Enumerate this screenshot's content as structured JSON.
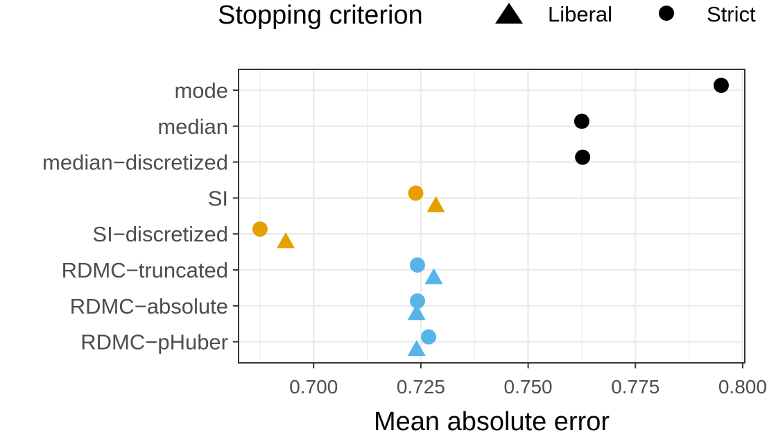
{
  "chart_data": {
    "type": "scatter",
    "title": "",
    "xlabel": "Mean absolute error",
    "ylabel": "",
    "xlim": [
      0.6825,
      0.8005
    ],
    "xticks": [
      0.7,
      0.725,
      0.75,
      0.775,
      0.8
    ],
    "xtick_labels": [
      "0.700",
      "0.725",
      "0.750",
      "0.775",
      "0.800"
    ],
    "grid": true,
    "legend": {
      "title": "Stopping criterion",
      "placement": "top",
      "entries": [
        {
          "name": "Liberal",
          "shape": "triangle"
        },
        {
          "name": "Strict",
          "shape": "circle"
        }
      ]
    },
    "categories": [
      "mode",
      "median",
      "median−discretized",
      "SI",
      "SI−discretized",
      "RDMC−truncated",
      "RDMC−absolute",
      "RDMC−pHuber"
    ],
    "colors": {
      "baseline": "#000000",
      "si": "#E69F00",
      "rdmc": "#56B4E9"
    },
    "series": [
      {
        "name": "Liberal",
        "shape": "triangle",
        "points": [
          {
            "category": "SI",
            "x": 0.7285,
            "color": "#E69F00"
          },
          {
            "category": "SI−discretized",
            "x": 0.6935,
            "color": "#E69F00"
          },
          {
            "category": "RDMC−truncated",
            "x": 0.728,
            "color": "#56B4E9"
          },
          {
            "category": "RDMC−absolute",
            "x": 0.724,
            "color": "#56B4E9"
          },
          {
            "category": "RDMC−pHuber",
            "x": 0.724,
            "color": "#56B4E9"
          }
        ]
      },
      {
        "name": "Strict",
        "shape": "circle",
        "points": [
          {
            "category": "mode",
            "x": 0.795,
            "color": "#000000"
          },
          {
            "category": "median",
            "x": 0.7625,
            "color": "#000000"
          },
          {
            "category": "median−discretized",
            "x": 0.7627,
            "color": "#000000"
          },
          {
            "category": "SI",
            "x": 0.7238,
            "color": "#E69F00"
          },
          {
            "category": "SI−discretized",
            "x": 0.6875,
            "color": "#E69F00"
          },
          {
            "category": "RDMC−truncated",
            "x": 0.7242,
            "color": "#56B4E9"
          },
          {
            "category": "RDMC−absolute",
            "x": 0.7242,
            "color": "#56B4E9"
          },
          {
            "category": "RDMC−pHuber",
            "x": 0.7268,
            "color": "#56B4E9"
          }
        ]
      }
    ]
  }
}
